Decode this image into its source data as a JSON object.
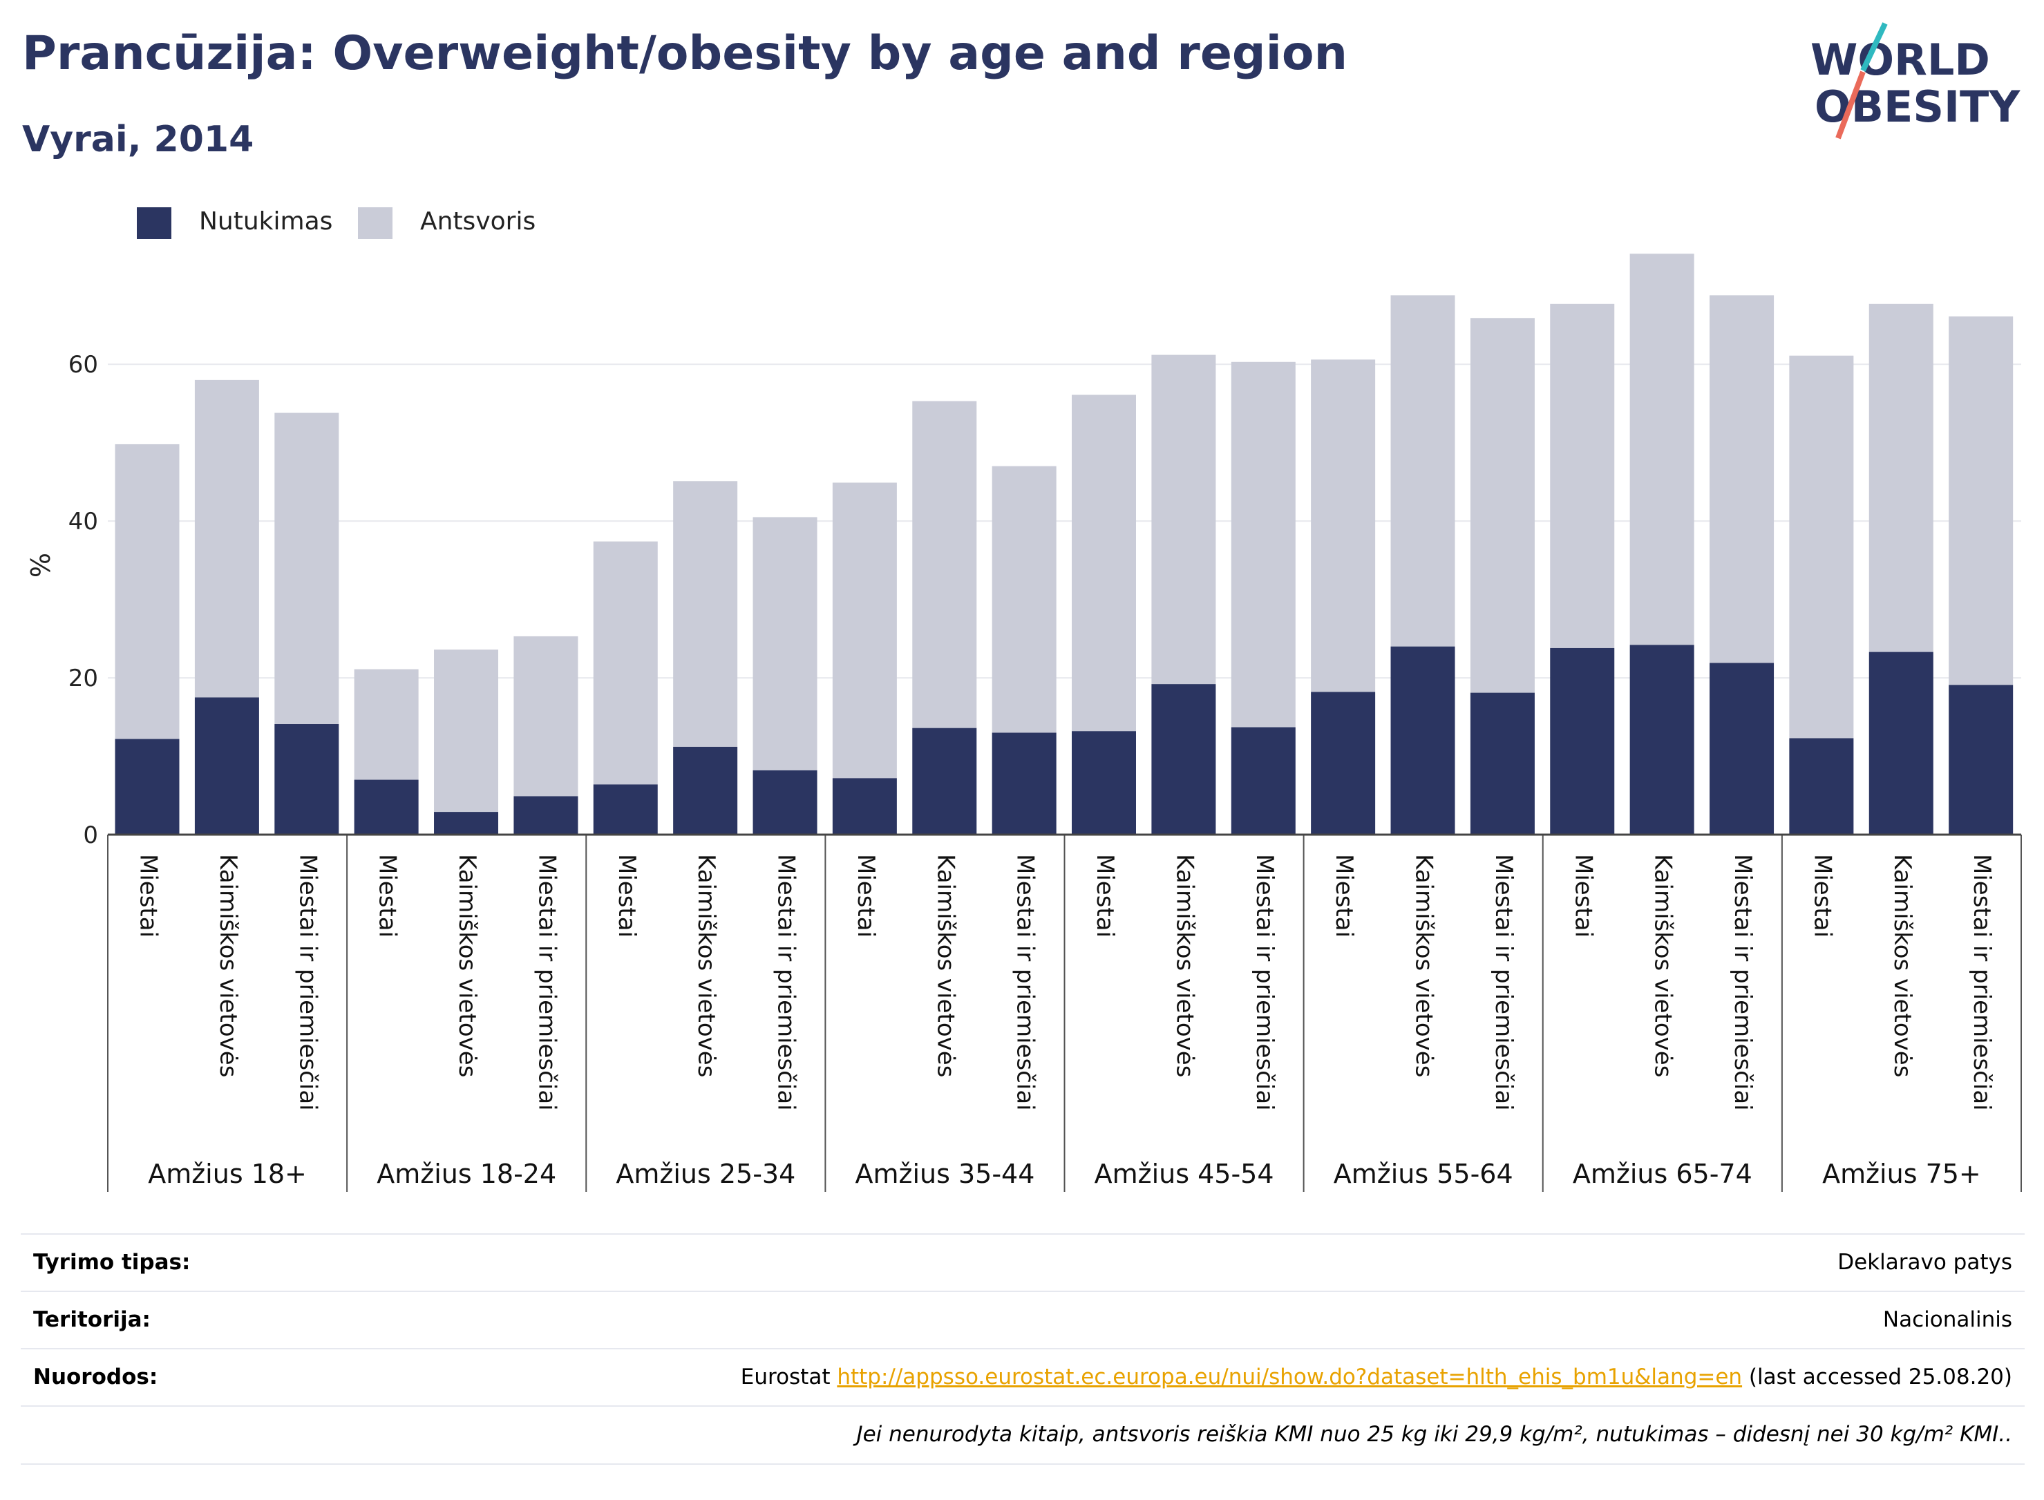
{
  "header": {
    "title": "Prancūzija: Overweight/obesity by age and region",
    "subtitle": "Vyrai, 2014"
  },
  "logo": {
    "line1": "WORLD",
    "line2": "OBESITY"
  },
  "colors": {
    "obesity": "#2b3561",
    "overweight": "#caccd8",
    "title": "#2b3561",
    "link": "#e8a200"
  },
  "chart_data": {
    "type": "bar",
    "stacked": true,
    "ylabel": "%",
    "ylim": [
      0,
      75
    ],
    "yticks": [
      0,
      20,
      40,
      60
    ],
    "grid": true,
    "legend": {
      "position": "top-left",
      "entries": [
        "Nutukimas",
        "Antsvoris"
      ]
    },
    "groups": [
      {
        "label": "Amžius 18+",
        "categories": [
          "Miestai",
          "Kaimiškos vietovės",
          "Miestai ir priemiesčiai"
        ]
      },
      {
        "label": "Amžius 18-24",
        "categories": [
          "Miestai",
          "Kaimiškos vietovės",
          "Miestai ir priemiesčiai"
        ]
      },
      {
        "label": "Amžius 25-34",
        "categories": [
          "Miestai",
          "Kaimiškos vietovės",
          "Miestai ir priemiesčiai"
        ]
      },
      {
        "label": "Amžius 35-44",
        "categories": [
          "Miestai",
          "Kaimiškos vietovės",
          "Miestai ir priemiesčiai"
        ]
      },
      {
        "label": "Amžius 45-54",
        "categories": [
          "Miestai",
          "Kaimiškos vietovės",
          "Miestai ir priemiesčiai"
        ]
      },
      {
        "label": "Amžius 55-64",
        "categories": [
          "Miestai",
          "Kaimiškos vietovės",
          "Miestai ir priemiesčiai"
        ]
      },
      {
        "label": "Amžius 65-74",
        "categories": [
          "Miestai",
          "Kaimiškos vietovės",
          "Miestai ir priemiesčiai"
        ]
      },
      {
        "label": "Amžius 75+",
        "categories": [
          "Miestai",
          "Kaimiškos vietovės",
          "Miestai ir priemiesčiai"
        ]
      }
    ],
    "series": [
      {
        "name": "Nutukimas",
        "values": [
          12.2,
          17.5,
          14.1,
          7.0,
          2.9,
          4.9,
          6.4,
          11.2,
          8.2,
          7.2,
          13.6,
          13.0,
          13.2,
          19.2,
          13.7,
          18.2,
          24.0,
          18.1,
          23.8,
          24.2,
          21.9,
          12.3,
          23.3,
          19.1
        ]
      },
      {
        "name": "Antsvoris",
        "values": [
          37.6,
          40.5,
          39.7,
          14.1,
          20.7,
          20.4,
          31.0,
          33.9,
          32.3,
          37.7,
          41.7,
          34.0,
          42.9,
          42.0,
          46.6,
          42.4,
          44.8,
          47.8,
          43.9,
          49.9,
          46.9,
          48.8,
          44.4,
          47.0
        ]
      }
    ]
  },
  "info": {
    "rows": [
      {
        "key": "Tyrimo tipas:",
        "value": "Deklaravo patys"
      },
      {
        "key": "Teritorija:",
        "value": "Nacionalinis"
      }
    ],
    "references": {
      "key": "Nuorodos:",
      "prefix": "Eurostat ",
      "link": "http://appsso.eurostat.ec.europa.eu/nui/show.do?dataset=hlth_ehis_bm1u&lang=en",
      "suffix": " (last accessed 25.08.20)"
    },
    "note": "Jei nenurodyta kitaip, antsvoris reiškia KMI nuo 25 kg iki 29,9 kg/m², nutukimas – didesnį nei 30 kg/m² KMI.."
  }
}
